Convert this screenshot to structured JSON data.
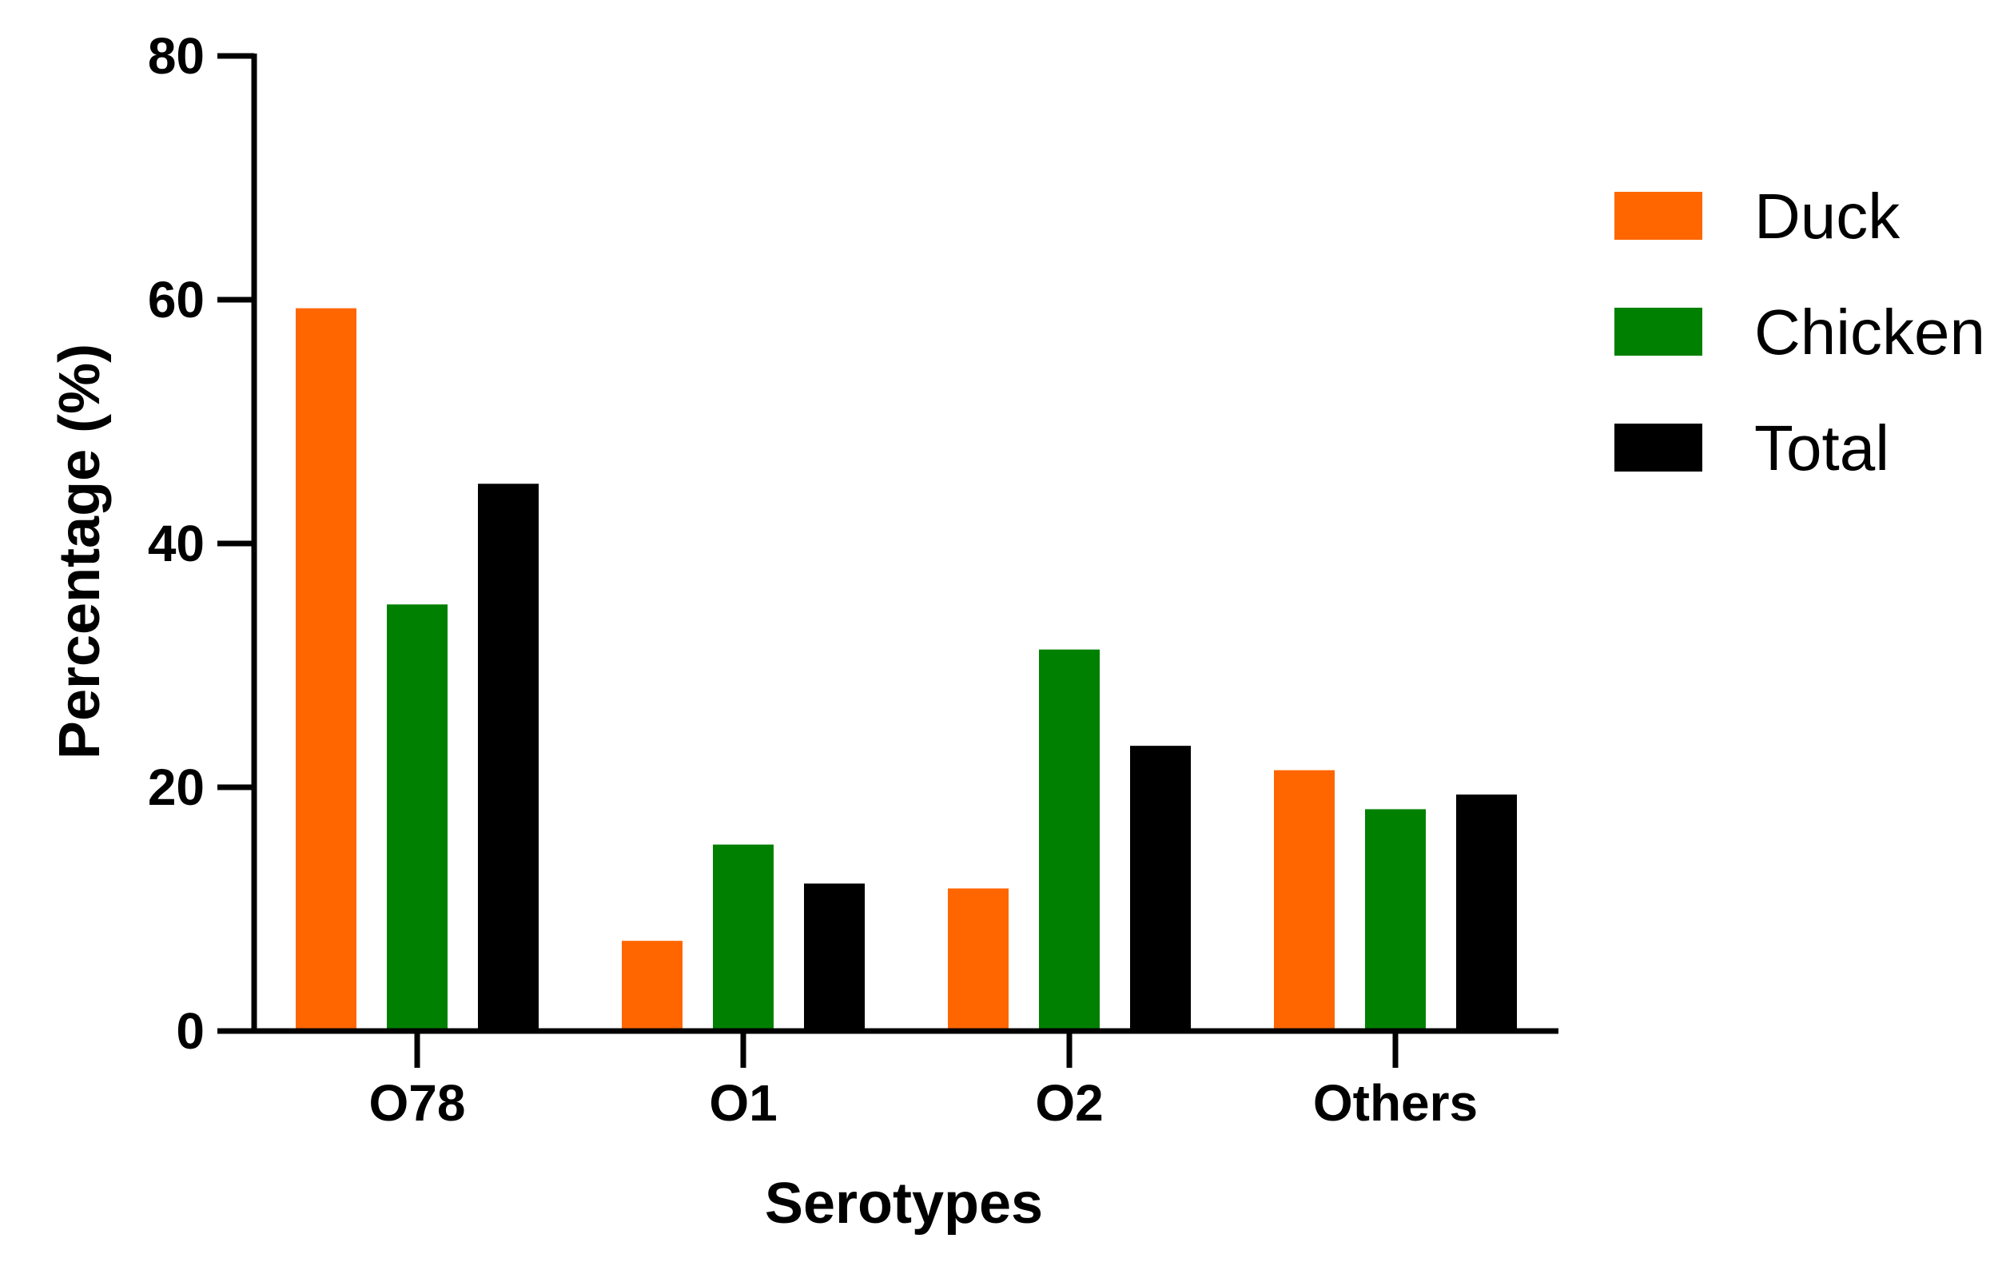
{
  "chart_data": {
    "type": "bar",
    "title": "",
    "xlabel": "Serotypes",
    "ylabel": "Percentage (%)",
    "categories": [
      "O78",
      "O1",
      "O2",
      "Others"
    ],
    "series": [
      {
        "name": "Duck",
        "color": "#ff6600",
        "values": [
          59.3,
          7.4,
          11.7,
          21.4
        ]
      },
      {
        "name": "Chicken",
        "color": "#008000",
        "values": [
          35.0,
          15.3,
          31.3,
          18.2
        ]
      },
      {
        "name": "Total",
        "color": "#000000",
        "values": [
          44.9,
          12.1,
          23.4,
          19.4
        ]
      }
    ],
    "ylim": [
      0,
      80
    ],
    "yticks": [
      0,
      20,
      40,
      60,
      80
    ],
    "grid": false,
    "legend_position": "right"
  }
}
